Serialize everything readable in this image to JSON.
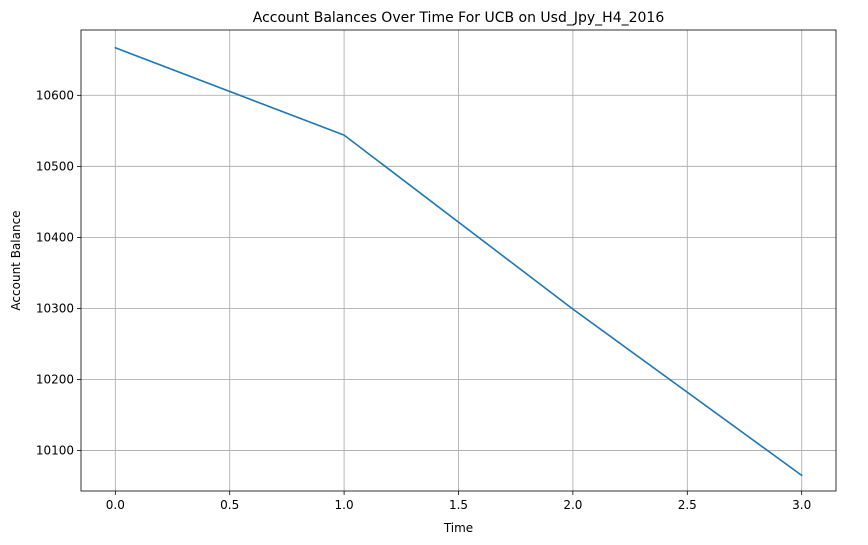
{
  "chart_data": {
    "type": "line",
    "title": "Account Balances Over Time For UCB on Usd_Jpy_H4_2016",
    "xlabel": "Time",
    "ylabel": "Account Balance",
    "xlim": [
      -0.15,
      3.15
    ],
    "ylim": [
      10043,
      10692
    ],
    "x_ticks": [
      0.0,
      0.5,
      1.0,
      1.5,
      2.0,
      2.5,
      3.0
    ],
    "x_tick_labels": [
      "0.0",
      "0.5",
      "1.0",
      "1.5",
      "2.0",
      "2.5",
      "3.0"
    ],
    "y_ticks": [
      10100,
      10200,
      10300,
      10400,
      10500,
      10600
    ],
    "y_tick_labels": [
      "10100",
      "10200",
      "10300",
      "10400",
      "10500",
      "10600"
    ],
    "grid": true,
    "series": [
      {
        "color": "#1f77b4",
        "x": [
          0,
          1,
          2,
          3
        ],
        "values": [
          10667,
          10544,
          10299,
          10065
        ]
      }
    ]
  }
}
